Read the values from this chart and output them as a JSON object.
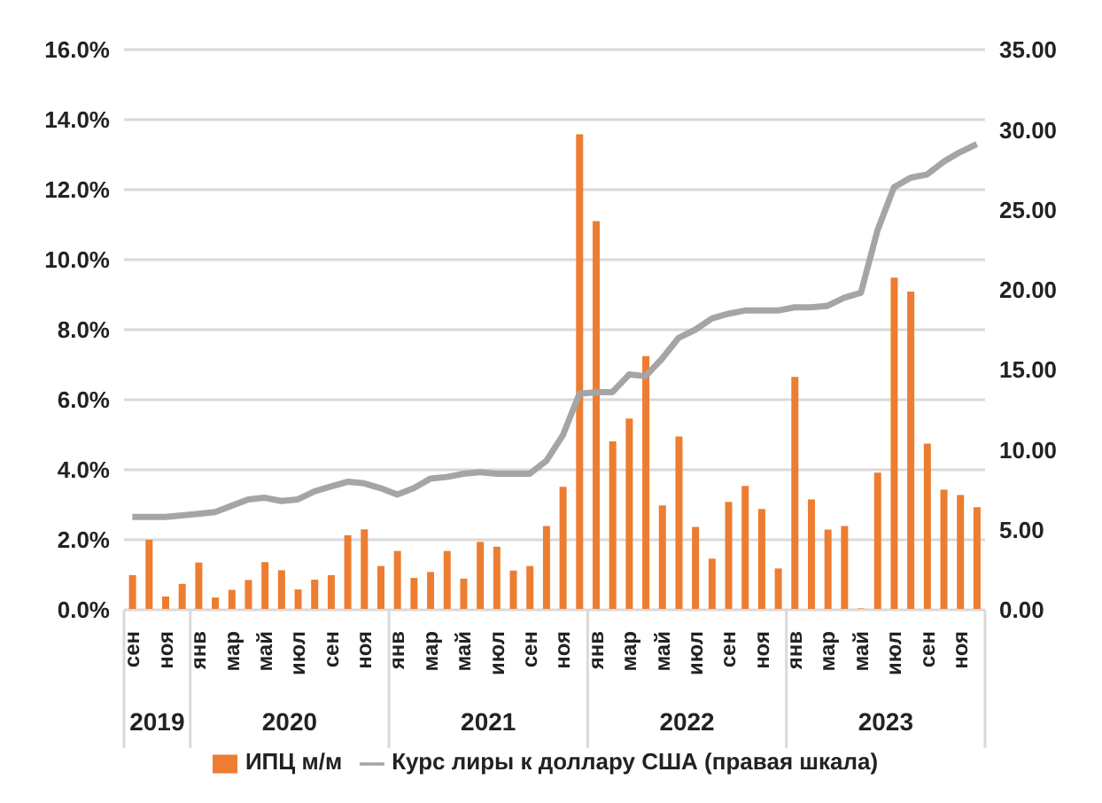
{
  "chart_data": {
    "type": "bar",
    "categories": [
      "сен",
      null,
      "ноя",
      null,
      "янв",
      null,
      "мар",
      null,
      "май",
      null,
      "июл",
      null,
      "сен",
      null,
      "ноя",
      null,
      "янв",
      null,
      "мар",
      null,
      "май",
      null,
      "июл",
      null,
      "сен",
      null,
      "ноя",
      null,
      "янв",
      null,
      "мар",
      null,
      "май",
      null,
      "июл",
      null,
      "сен",
      null,
      "ноя",
      null,
      "янв",
      null,
      "мар",
      null,
      "май",
      null,
      "июл",
      null,
      "сен",
      null,
      "ноя",
      null
    ],
    "annotations": [
      "2019",
      "2020",
      "2021",
      "2022",
      "2023"
    ],
    "series": [
      {
        "name": "ИПЦ м/м",
        "color": "#ed7d31",
        "values": [
          0.99,
          2.0,
          0.38,
          0.74,
          1.35,
          0.35,
          0.57,
          0.85,
          1.36,
          1.13,
          0.58,
          0.86,
          0.99,
          2.13,
          2.3,
          1.25,
          1.68,
          0.91,
          1.08,
          1.68,
          0.89,
          1.94,
          1.8,
          1.12,
          1.25,
          2.39,
          3.51,
          13.58,
          11.1,
          4.81,
          5.46,
          7.25,
          2.98,
          4.95,
          2.37,
          1.46,
          3.08,
          3.54,
          2.88,
          1.18,
          6.65,
          3.15,
          2.29,
          2.39,
          0.04,
          3.92,
          9.49,
          9.09,
          4.75,
          3.43,
          3.28,
          2.93
        ]
      },
      {
        "name": "Курс лиры к доллару США (правая шкала)",
        "type": "line",
        "axis": "y2",
        "color": "#a5a5a5",
        "values": [
          5.8,
          5.8,
          5.8,
          5.9,
          6.0,
          6.1,
          6.5,
          6.9,
          7.0,
          6.8,
          6.9,
          7.4,
          7.7,
          8.0,
          7.9,
          7.6,
          7.2,
          7.6,
          8.2,
          8.3,
          8.5,
          8.6,
          8.5,
          8.5,
          8.5,
          9.3,
          10.9,
          13.5,
          13.6,
          13.6,
          14.7,
          14.6,
          15.7,
          17.0,
          17.5,
          18.2,
          18.5,
          18.7,
          18.7,
          18.7,
          18.9,
          18.9,
          19.0,
          19.5,
          19.8,
          23.7,
          26.4,
          27.0,
          27.2,
          28.0,
          28.6,
          29.1
        ]
      }
    ],
    "ylim": [
      0,
      16
    ],
    "yticks": [
      {
        "value": 0,
        "label": "0.0%"
      },
      {
        "value": 2,
        "label": "2.0%"
      },
      {
        "value": 4,
        "label": "4.0%"
      },
      {
        "value": 6,
        "label": "6.0%"
      },
      {
        "value": 8,
        "label": "8.0%"
      },
      {
        "value": 10,
        "label": "10.0%"
      },
      {
        "value": 12,
        "label": "12.0%"
      },
      {
        "value": 14,
        "label": "14.0%"
      },
      {
        "value": 16,
        "label": "16.0%"
      }
    ],
    "y2lim": [
      0,
      35
    ],
    "y2ticks": [
      {
        "value": 0,
        "label": "0.00"
      },
      {
        "value": 5,
        "label": "5.00"
      },
      {
        "value": 10,
        "label": "10.00"
      },
      {
        "value": 15,
        "label": "15.00"
      },
      {
        "value": 20,
        "label": "20.00"
      },
      {
        "value": 25,
        "label": "25.00"
      },
      {
        "value": 30,
        "label": "30.00"
      },
      {
        "value": 35,
        "label": "35.00"
      }
    ],
    "grid": "y",
    "legend": "bottom",
    "marker": "none",
    "line_style": "solid"
  }
}
